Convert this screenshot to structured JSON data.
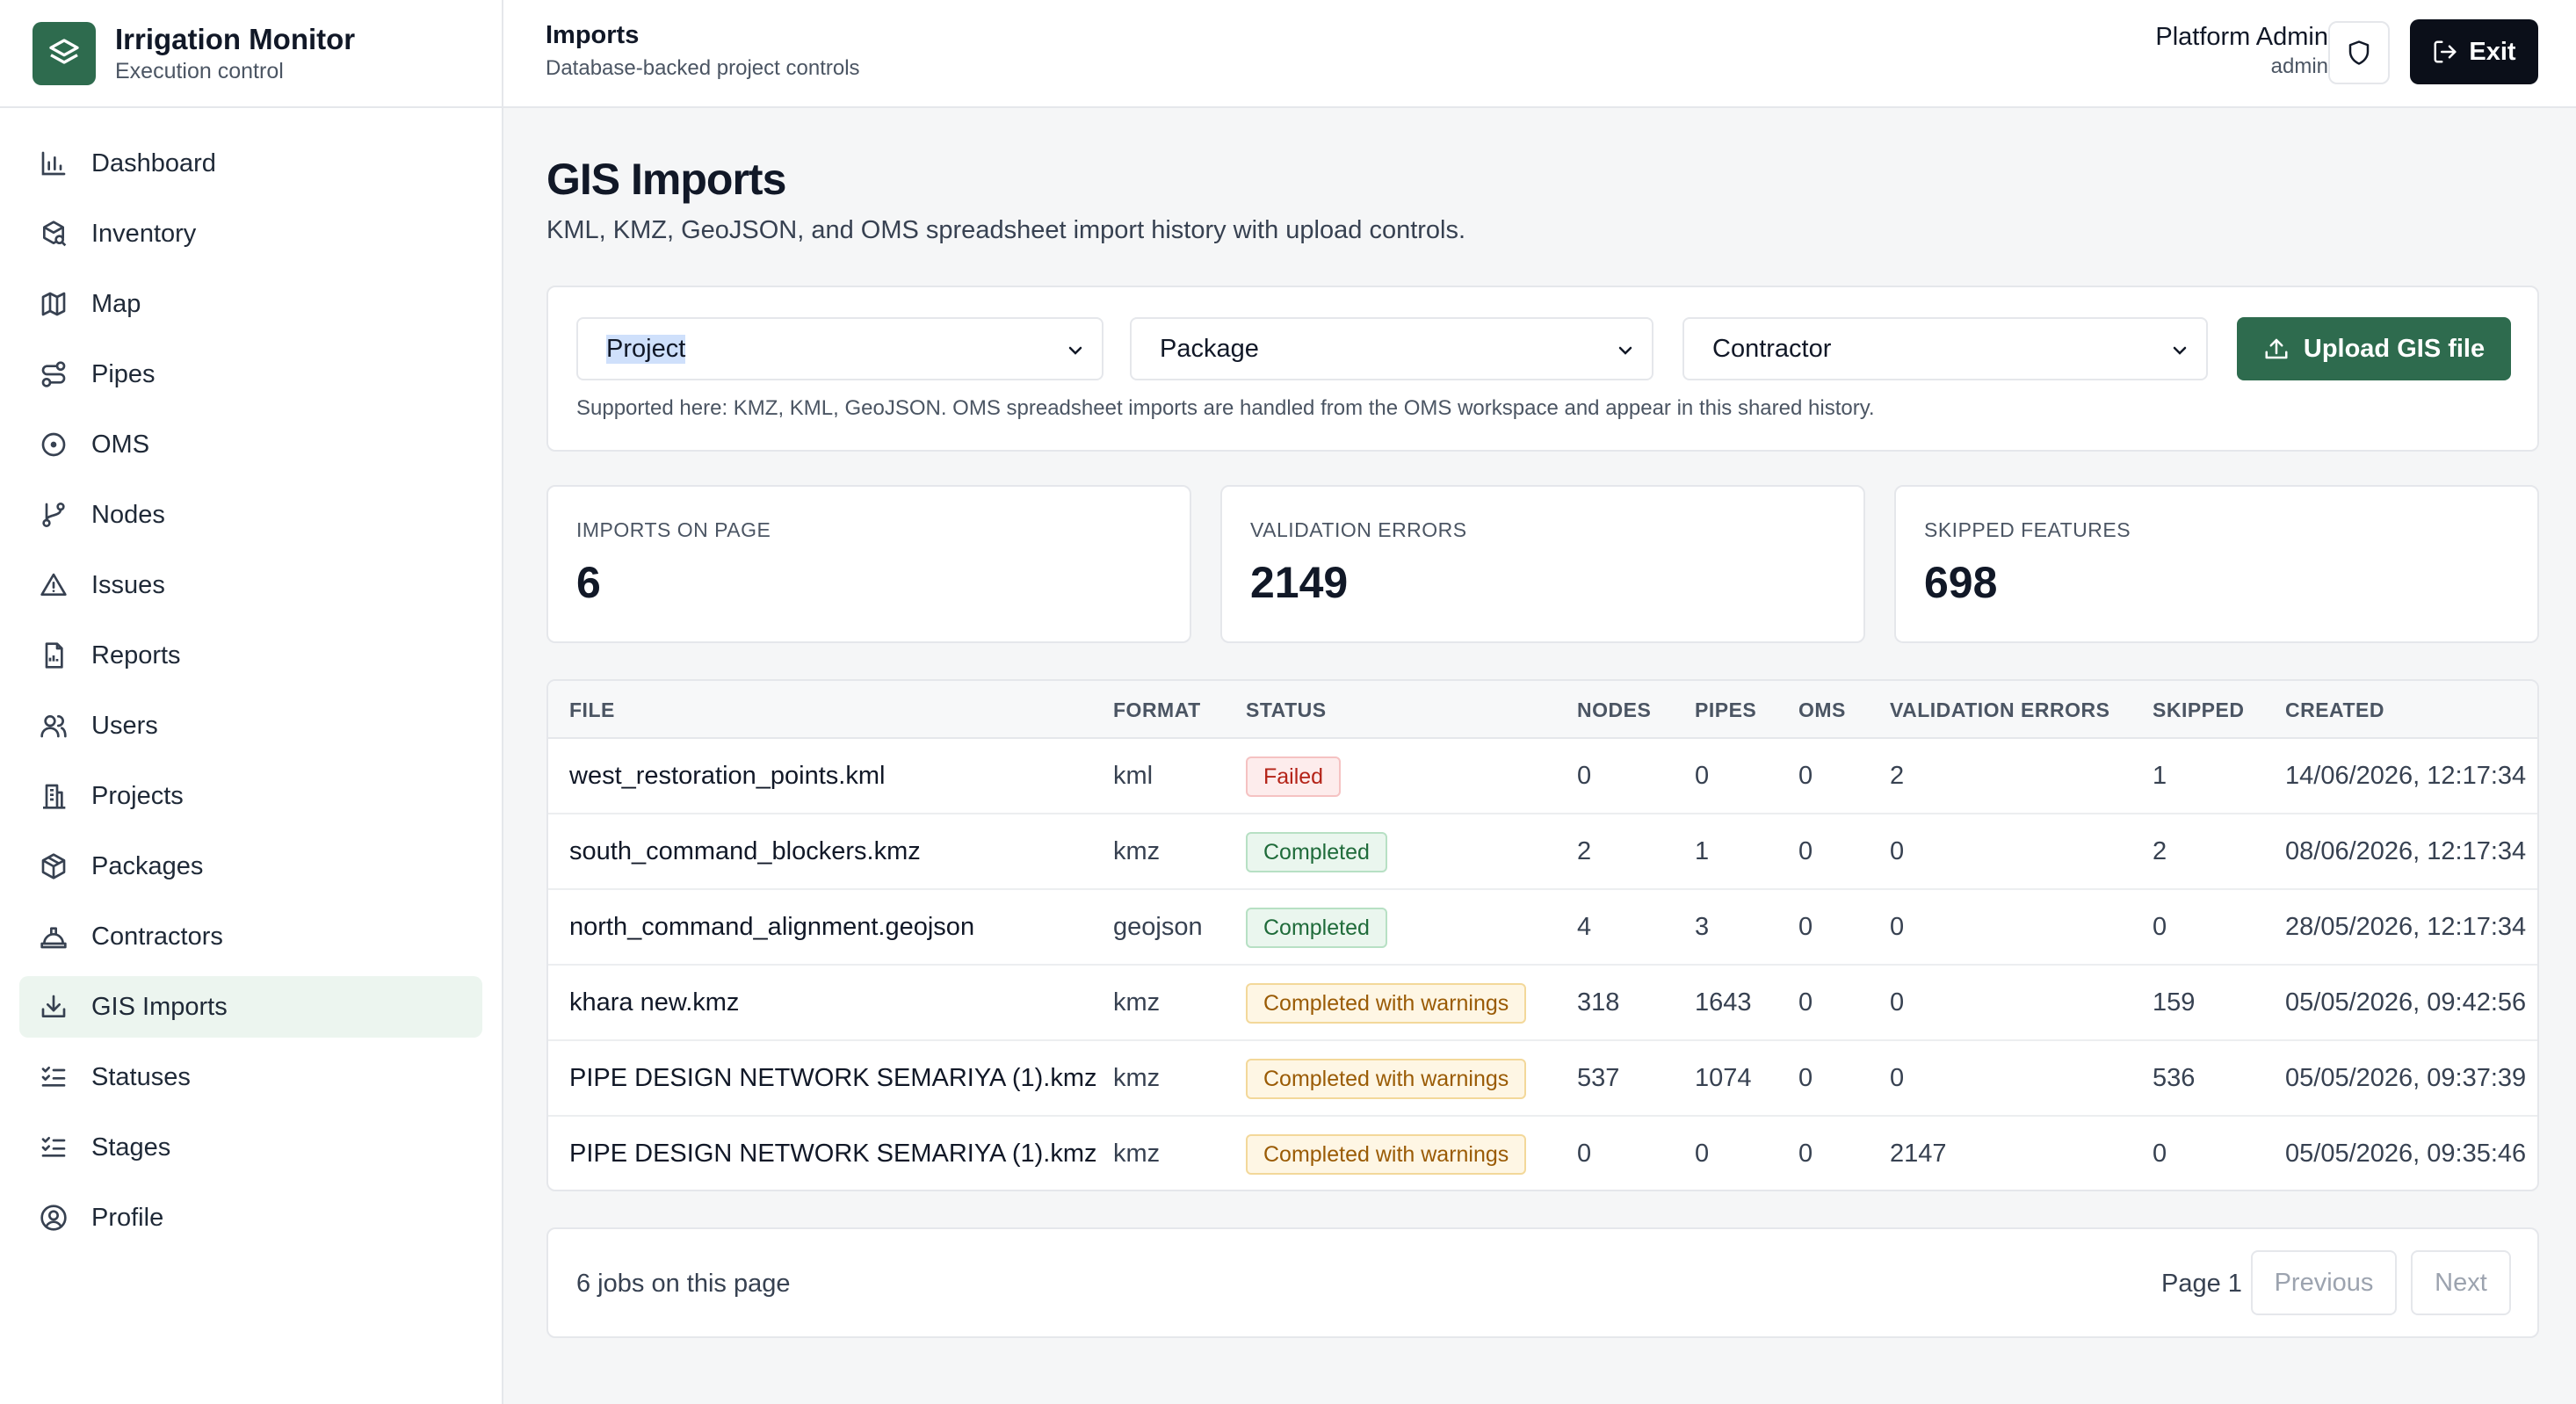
{
  "app": {
    "title": "Irrigation Monitor",
    "subtitle": "Execution control"
  },
  "sidebar": {
    "items": [
      {
        "label": "Dashboard",
        "icon": "bar-chart-icon",
        "active": false
      },
      {
        "label": "Inventory",
        "icon": "package-search-icon",
        "active": false
      },
      {
        "label": "Map",
        "icon": "map-icon",
        "active": false
      },
      {
        "label": "Pipes",
        "icon": "route-icon",
        "active": false
      },
      {
        "label": "OMS",
        "icon": "circle-dot-icon",
        "active": false
      },
      {
        "label": "Nodes",
        "icon": "git-branch-icon",
        "active": false
      },
      {
        "label": "Issues",
        "icon": "alert-triangle-icon",
        "active": false
      },
      {
        "label": "Reports",
        "icon": "report-file-icon",
        "active": false
      },
      {
        "label": "Users",
        "icon": "users-icon",
        "active": false
      },
      {
        "label": "Projects",
        "icon": "building-icon",
        "active": false
      },
      {
        "label": "Packages",
        "icon": "box-icon",
        "active": false
      },
      {
        "label": "Contractors",
        "icon": "hard-hat-icon",
        "active": false
      },
      {
        "label": "GIS Imports",
        "icon": "import-icon",
        "active": true
      },
      {
        "label": "Statuses",
        "icon": "list-checks-icon",
        "active": false
      },
      {
        "label": "Stages",
        "icon": "list-checks-icon",
        "active": false
      },
      {
        "label": "Profile",
        "icon": "user-circle-icon",
        "active": false
      }
    ]
  },
  "header": {
    "title": "Imports",
    "subtitle": "Database-backed project controls",
    "user_name": "Platform Admin",
    "user_role": "admin",
    "exit_label": "Exit"
  },
  "page": {
    "title": "GIS Imports",
    "description": "KML, KMZ, GeoJSON, and OMS spreadsheet import history with upload controls."
  },
  "filters": {
    "project": "Project",
    "package": "Package",
    "contractor": "Contractor",
    "upload_label": "Upload GIS file",
    "note": "Supported here: KMZ, KML, GeoJSON. OMS spreadsheet imports are handled from the OMS workspace and appear in this shared history."
  },
  "stats": [
    {
      "label": "IMPORTS ON PAGE",
      "value": "6"
    },
    {
      "label": "VALIDATION ERRORS",
      "value": "2149"
    },
    {
      "label": "SKIPPED FEATURES",
      "value": "698"
    }
  ],
  "table": {
    "columns": [
      "FILE",
      "FORMAT",
      "STATUS",
      "NODES",
      "PIPES",
      "OMS",
      "VALIDATION ERRORS",
      "SKIPPED",
      "CREATED"
    ],
    "rows": [
      {
        "file": "west_restoration_points.kml",
        "format": "kml",
        "status": "Failed",
        "status_kind": "failed",
        "nodes": "0",
        "pipes": "0",
        "oms": "0",
        "validation_errors": "2",
        "skipped": "1",
        "created": "14/06/2026, 12:17:34"
      },
      {
        "file": "south_command_blockers.kmz",
        "format": "kmz",
        "status": "Completed",
        "status_kind": "completed",
        "nodes": "2",
        "pipes": "1",
        "oms": "0",
        "validation_errors": "0",
        "skipped": "2",
        "created": "08/06/2026, 12:17:34"
      },
      {
        "file": "north_command_alignment.geojson",
        "format": "geojson",
        "status": "Completed",
        "status_kind": "completed",
        "nodes": "4",
        "pipes": "3",
        "oms": "0",
        "validation_errors": "0",
        "skipped": "0",
        "created": "28/05/2026, 12:17:34"
      },
      {
        "file": "khara new.kmz",
        "format": "kmz",
        "status": "Completed with warnings",
        "status_kind": "warn",
        "nodes": "318",
        "pipes": "1643",
        "oms": "0",
        "validation_errors": "0",
        "skipped": "159",
        "created": "05/05/2026, 09:42:56"
      },
      {
        "file": "PIPE DESIGN NETWORK SEMARIYA (1).kmz",
        "format": "kmz",
        "status": "Completed with warnings",
        "status_kind": "warn",
        "nodes": "537",
        "pipes": "1074",
        "oms": "0",
        "validation_errors": "0",
        "skipped": "536",
        "created": "05/05/2026, 09:37:39"
      },
      {
        "file": "PIPE DESIGN NETWORK SEMARIYA (1).kmz",
        "format": "kmz",
        "status": "Completed with warnings",
        "status_kind": "warn",
        "nodes": "0",
        "pipes": "0",
        "oms": "0",
        "validation_errors": "2147",
        "skipped": "0",
        "created": "05/05/2026, 09:35:46"
      }
    ]
  },
  "pager": {
    "count_text": "6 jobs on this page",
    "page_text": "Page 1",
    "previous": "Previous",
    "next": "Next"
  },
  "colors": {
    "brand": "#2e6b4e",
    "active_nav_bg": "#ecf5ef",
    "exit_bg": "#0b0f19"
  }
}
